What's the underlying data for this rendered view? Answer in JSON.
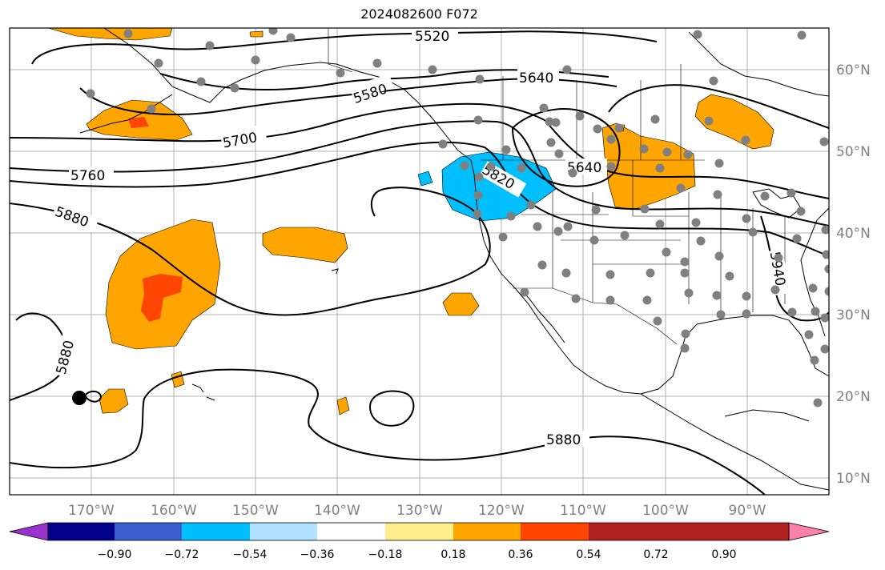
{
  "title": "2024082600 F072",
  "map": {
    "lon_labels": [
      "170°W",
      "160°W",
      "150°W",
      "140°W",
      "130°W",
      "120°W",
      "110°W",
      "100°W",
      "90°W"
    ],
    "lat_labels": [
      "60°N",
      "50°N",
      "40°N",
      "30°N",
      "20°N",
      "10°N"
    ],
    "contour_labels": [
      "5520",
      "5580",
      "5640",
      "5640",
      "5700",
      "5760",
      "5820",
      "5880",
      "5880",
      "5880",
      "5940"
    ],
    "colors": {
      "contour": "#000000",
      "coast": "#000000",
      "grid": "#b0b0b0",
      "station": "#808080",
      "anomaly_pos": "#ffa500",
      "anomaly_strong_pos": "#ff4500",
      "anomaly_neg": "#00bfff",
      "tick_label": "#808080"
    }
  },
  "colorbar": {
    "ticks": [
      "−0.90",
      "−0.72",
      "−0.54",
      "−0.36",
      "−0.18",
      "0.18",
      "0.36",
      "0.54",
      "0.72",
      "0.90"
    ],
    "colors": [
      "#9932cc",
      "#00008b",
      "#3a5fcd",
      "#00bfff",
      "#b0e2ff",
      "#ffffff",
      "#ffec8b",
      "#ffa500",
      "#ff4500",
      "#b22222",
      "#ff82ab"
    ]
  }
}
